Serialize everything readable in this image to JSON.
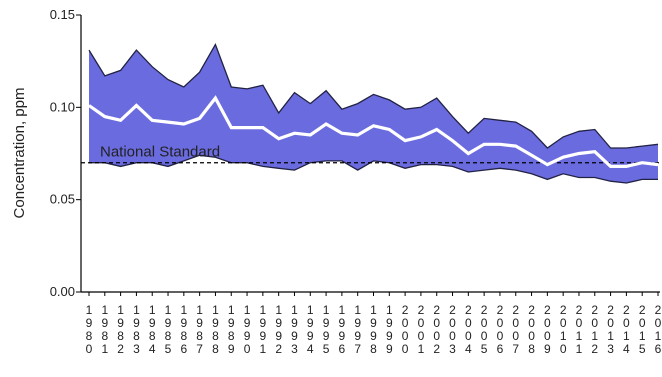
{
  "chart_data": {
    "type": "area",
    "ylabel": "Concentration, ppm",
    "xlabel": "",
    "x": [
      1980,
      1981,
      1982,
      1983,
      1984,
      1985,
      1986,
      1987,
      1988,
      1989,
      1990,
      1991,
      1992,
      1993,
      1994,
      1995,
      1996,
      1997,
      1998,
      1999,
      2000,
      2001,
      2002,
      2003,
      2004,
      2005,
      2006,
      2007,
      2008,
      2009,
      2010,
      2011,
      2012,
      2013,
      2014,
      2015,
      2016
    ],
    "x_tick_labels": [
      "1980",
      "1981",
      "1982",
      "1983",
      "1984",
      "1985",
      "1986",
      "1987",
      "1988",
      "1989",
      "1990",
      "1991",
      "1992",
      "1993",
      "1994",
      "1995",
      "1996",
      "1997",
      "1998",
      "1999",
      "2000",
      "2001",
      "2002",
      "2003",
      "2004",
      "2005",
      "2006",
      "2007",
      "2008",
      "2009",
      "2010",
      "2011",
      "2012",
      "2013",
      "2014",
      "2015",
      "2016"
    ],
    "ylim": [
      0.0,
      0.15
    ],
    "yticks": [
      "0.00",
      "0.05",
      "0.10",
      "0.15"
    ],
    "ytick_values": [
      0.0,
      0.05,
      0.1,
      0.15
    ],
    "series": [
      {
        "name": "",
        "role": "upper",
        "values": [
          0.131,
          0.117,
          0.12,
          0.131,
          0.122,
          0.115,
          0.111,
          0.119,
          0.134,
          0.111,
          0.11,
          0.112,
          0.097,
          0.108,
          0.102,
          0.109,
          0.099,
          0.102,
          0.107,
          0.104,
          0.099,
          0.1,
          0.105,
          0.095,
          0.086,
          0.094,
          0.093,
          0.092,
          0.087,
          0.078,
          0.084,
          0.087,
          0.088,
          0.078,
          0.078,
          0.079,
          0.08
        ]
      },
      {
        "name": "",
        "role": "average",
        "values": [
          0.101,
          0.095,
          0.093,
          0.101,
          0.093,
          0.092,
          0.091,
          0.094,
          0.105,
          0.089,
          0.089,
          0.089,
          0.083,
          0.086,
          0.085,
          0.091,
          0.086,
          0.085,
          0.09,
          0.088,
          0.082,
          0.084,
          0.088,
          0.082,
          0.075,
          0.08,
          0.08,
          0.079,
          0.074,
          0.069,
          0.073,
          0.075,
          0.076,
          0.068,
          0.068,
          0.07,
          0.069
        ]
      },
      {
        "name": "",
        "role": "lower",
        "values": [
          0.07,
          0.07,
          0.068,
          0.07,
          0.07,
          0.068,
          0.071,
          0.074,
          0.073,
          0.07,
          0.07,
          0.068,
          0.067,
          0.066,
          0.07,
          0.071,
          0.071,
          0.066,
          0.071,
          0.07,
          0.067,
          0.069,
          0.069,
          0.068,
          0.065,
          0.066,
          0.067,
          0.066,
          0.064,
          0.061,
          0.064,
          0.062,
          0.062,
          0.06,
          0.059,
          0.061,
          0.061
        ]
      }
    ],
    "reference_line": {
      "label": "National Standard",
      "value": 0.07,
      "style": "dashed"
    },
    "colors": {
      "band_fill": "#6b6be0",
      "band_edge": "#222244",
      "average_line": "#ffffff",
      "reference_line": "#000000",
      "axis": "#000000"
    },
    "grid": false,
    "legend": "none"
  }
}
